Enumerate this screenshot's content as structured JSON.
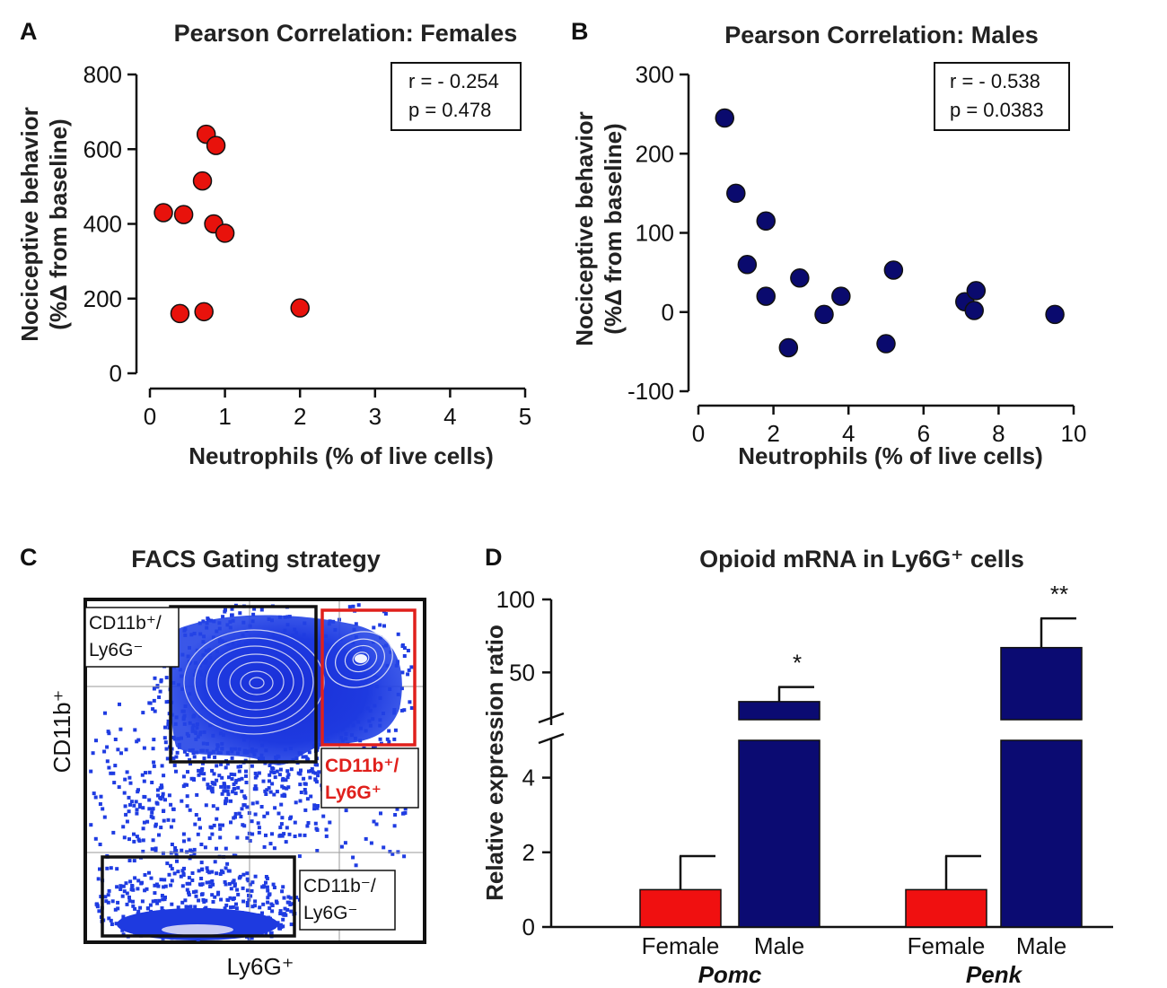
{
  "chart_data": [
    {
      "id": "A",
      "type": "scatter",
      "panel_label": "A",
      "title": "Pearson Correlation: Females",
      "xlabel": "Neutrophils (% of live cells)",
      "ylabel_line1": "Nociceptive behavior",
      "ylabel_line2": "(%Δ from baseline)",
      "xlim": [
        0,
        5
      ],
      "ylim": [
        0,
        800
      ],
      "xticks": [
        "0",
        "1",
        "2",
        "3",
        "4",
        "5"
      ],
      "yticks": [
        "0",
        "200",
        "400",
        "600",
        "800"
      ],
      "r_text": "r = - 0.254",
      "p_text": "p = 0.478",
      "color": "#e8120c",
      "points": [
        {
          "x": 0.18,
          "y": 430
        },
        {
          "x": 0.45,
          "y": 425
        },
        {
          "x": 0.4,
          "y": 160
        },
        {
          "x": 0.75,
          "y": 640
        },
        {
          "x": 0.88,
          "y": 610
        },
        {
          "x": 0.7,
          "y": 515
        },
        {
          "x": 0.85,
          "y": 400
        },
        {
          "x": 1.0,
          "y": 375
        },
        {
          "x": 0.72,
          "y": 165
        },
        {
          "x": 2.0,
          "y": 175
        }
      ]
    },
    {
      "id": "B",
      "type": "scatter",
      "panel_label": "B",
      "title": "Pearson Correlation: Males",
      "xlabel": "Neutrophils (% of live cells)",
      "ylabel_line1": "Nociceptive behavior",
      "ylabel_line2": "(%Δ from baseline)",
      "xlim": [
        0,
        10
      ],
      "ylim": [
        -100,
        300
      ],
      "xticks": [
        "0",
        "2",
        "4",
        "6",
        "8",
        "10"
      ],
      "yticks": [
        "-100",
        "0",
        "100",
        "200",
        "300"
      ],
      "r_text": "r = - 0.538",
      "p_text": "p = 0.0383",
      "color": "#0a0a6e",
      "points": [
        {
          "x": 0.7,
          "y": 245
        },
        {
          "x": 1.0,
          "y": 150
        },
        {
          "x": 1.8,
          "y": 115
        },
        {
          "x": 1.3,
          "y": 60
        },
        {
          "x": 1.8,
          "y": 20
        },
        {
          "x": 2.4,
          "y": -45
        },
        {
          "x": 2.7,
          "y": 43
        },
        {
          "x": 3.35,
          "y": -3
        },
        {
          "x": 3.8,
          "y": 20
        },
        {
          "x": 5.0,
          "y": -40
        },
        {
          "x": 5.2,
          "y": 53
        },
        {
          "x": 7.1,
          "y": 13
        },
        {
          "x": 7.4,
          "y": 27
        },
        {
          "x": 7.35,
          "y": 2
        },
        {
          "x": 9.5,
          "y": -3
        }
      ]
    },
    {
      "id": "D",
      "type": "bar",
      "panel_label": "D",
      "title": "Opioid mRNA in Ly6G⁺ cells",
      "ylabel": "Relative expression ratio",
      "lower_axis": {
        "ylim": [
          0,
          5
        ],
        "yticks": [
          "0",
          "2",
          "4"
        ]
      },
      "upper_axis": {
        "ylim": [
          25,
          100
        ],
        "yticks": [
          "50",
          "100"
        ]
      },
      "groups": [
        {
          "gene": "Pomc",
          "bars": [
            {
              "label": "Female",
              "value": 1.0,
              "error": 0.9,
              "color": "#f01010",
              "sig": ""
            },
            {
              "label": "Male",
              "value": 30,
              "error": 10,
              "color": "#0b0b72",
              "sig": "*"
            }
          ]
        },
        {
          "gene": "Penk",
          "bars": [
            {
              "label": "Female",
              "value": 1.0,
              "error": 0.9,
              "color": "#f01010",
              "sig": ""
            },
            {
              "label": "Male",
              "value": 67,
              "error": 20,
              "color": "#0b0b72",
              "sig": "**"
            }
          ]
        }
      ]
    }
  ],
  "facs": {
    "panel_label": "C",
    "title": "FACS Gating strategy",
    "ylabel": "CD11b⁺",
    "xlabel": "Ly6G⁺",
    "gate_top_left": [
      "CD11b⁺/",
      "Ly6G⁻"
    ],
    "gate_top_right": [
      "CD11b⁺/",
      "Ly6G⁺"
    ],
    "gate_bottom": [
      "CD11b⁻/",
      "Ly6G⁻"
    ]
  }
}
